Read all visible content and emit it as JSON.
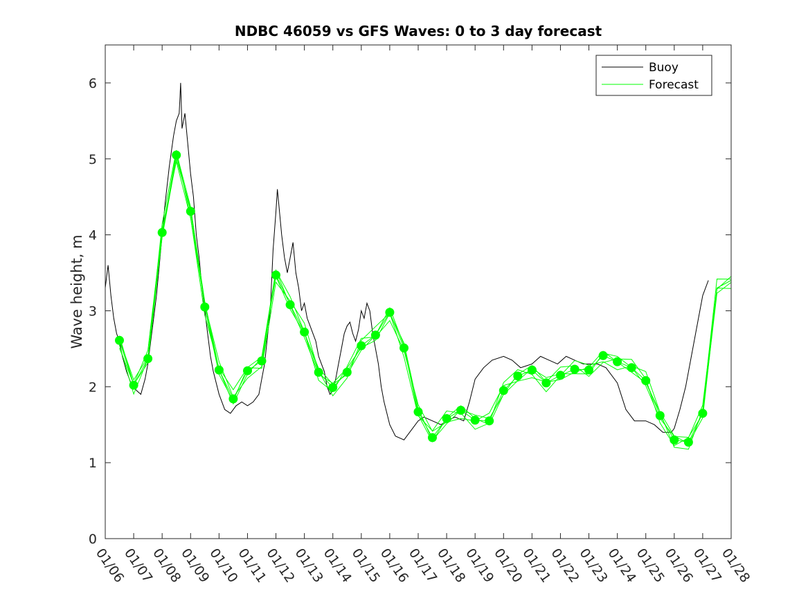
{
  "chart_data": {
    "type": "line",
    "title": "NDBC 46059 vs GFS Waves: 0 to 3 day forecast",
    "xlabel": "",
    "ylabel": "Wave height, m",
    "xlim": [
      0,
      22
    ],
    "ylim": [
      0,
      6.5
    ],
    "x_tick_labels": [
      "01/06",
      "01/07",
      "01/08",
      "01/09",
      "01/10",
      "01/11",
      "01/12",
      "01/13",
      "01/14",
      "01/15",
      "01/16",
      "01/17",
      "01/18",
      "01/19",
      "01/20",
      "01/21",
      "01/22",
      "01/23",
      "01/24",
      "01/25",
      "01/26",
      "01/27",
      "01/28"
    ],
    "y_ticks": [
      0,
      1,
      2,
      3,
      4,
      5,
      6
    ],
    "grid": false,
    "legend_position": "top-right",
    "colors": {
      "buoy": "#000000",
      "forecast": "#00ff00",
      "axes": "#262626"
    },
    "series": [
      {
        "name": "Buoy",
        "x_days": [
          0,
          0.1,
          0.2,
          0.3,
          0.4,
          0.5,
          0.6,
          0.75,
          0.9,
          1.0,
          1.1,
          1.25,
          1.4,
          1.5,
          1.6,
          1.7,
          1.8,
          1.9,
          2.0,
          2.1,
          2.25,
          2.4,
          2.5,
          2.6,
          2.65,
          2.7,
          2.8,
          2.9,
          3.0,
          3.1,
          3.2,
          3.3,
          3.4,
          3.5,
          3.6,
          3.7,
          3.8,
          4.0,
          4.2,
          4.4,
          4.5,
          4.6,
          4.8,
          5.0,
          5.2,
          5.4,
          5.6,
          5.8,
          5.9,
          6.0,
          6.05,
          6.1,
          6.2,
          6.3,
          6.4,
          6.5,
          6.6,
          6.7,
          6.8,
          6.9,
          7.0,
          7.1,
          7.2,
          7.3,
          7.4,
          7.5,
          7.6,
          7.7,
          7.8,
          7.9,
          8.0,
          8.1,
          8.2,
          8.3,
          8.4,
          8.5,
          8.6,
          8.7,
          8.8,
          8.9,
          9.0,
          9.1,
          9.2,
          9.3,
          9.4,
          9.5,
          9.6,
          9.7,
          9.8,
          10.0,
          10.2,
          10.5,
          10.8,
          11.0,
          11.2,
          11.5,
          11.8,
          12.0,
          12.3,
          12.6,
          12.8,
          13.0,
          13.3,
          13.6,
          14.0,
          14.3,
          14.6,
          15.0,
          15.3,
          15.6,
          15.9,
          16.2,
          16.5,
          16.8,
          17.0,
          17.3,
          17.6,
          18.0,
          18.3,
          18.6,
          19.0,
          19.3,
          19.6,
          19.9,
          20.0,
          20.2,
          20.4,
          20.6,
          20.8,
          21.0,
          21.2
        ],
        "values": [
          3.3,
          3.6,
          3.2,
          2.9,
          2.7,
          2.6,
          2.4,
          2.2,
          2.05,
          2.0,
          1.95,
          1.9,
          2.1,
          2.3,
          2.6,
          2.9,
          3.2,
          3.6,
          4.0,
          4.4,
          4.9,
          5.3,
          5.5,
          5.6,
          6.0,
          5.4,
          5.6,
          5.2,
          4.8,
          4.5,
          4.0,
          3.7,
          3.3,
          3.0,
          2.7,
          2.4,
          2.2,
          1.9,
          1.7,
          1.65,
          1.7,
          1.75,
          1.8,
          1.75,
          1.8,
          1.9,
          2.3,
          3.0,
          3.8,
          4.3,
          4.6,
          4.4,
          4.0,
          3.7,
          3.5,
          3.7,
          3.9,
          3.5,
          3.3,
          3.0,
          3.1,
          2.9,
          2.8,
          2.7,
          2.6,
          2.4,
          2.3,
          2.2,
          2.0,
          1.9,
          1.95,
          2.1,
          2.3,
          2.5,
          2.7,
          2.8,
          2.85,
          2.7,
          2.6,
          2.75,
          3.0,
          2.9,
          3.1,
          3.0,
          2.7,
          2.5,
          2.3,
          2.0,
          1.8,
          1.5,
          1.35,
          1.3,
          1.45,
          1.55,
          1.6,
          1.55,
          1.5,
          1.55,
          1.6,
          1.55,
          1.8,
          2.1,
          2.25,
          2.35,
          2.4,
          2.35,
          2.25,
          2.3,
          2.4,
          2.35,
          2.3,
          2.4,
          2.35,
          2.3,
          2.3,
          2.3,
          2.25,
          2.05,
          1.7,
          1.55,
          1.55,
          1.5,
          1.4,
          1.4,
          1.45,
          1.7,
          2.0,
          2.4,
          2.8,
          3.2,
          3.4
        ]
      },
      {
        "name": "Forecast",
        "x_days": [
          0.5,
          1.0,
          1.5,
          2.0,
          2.5,
          3.0,
          3.5,
          4.0,
          4.5,
          5.0,
          5.5,
          6.0,
          6.5,
          7.0,
          7.5,
          8.0,
          8.5,
          9.0,
          9.5,
          10.0,
          10.5,
          11.0,
          11.5,
          12.0,
          12.5,
          13.0,
          13.5,
          14.0,
          14.5,
          15.0,
          15.5,
          16.0,
          16.5,
          17.0,
          17.5,
          18.0,
          18.5,
          19.0,
          19.5,
          20.0,
          20.5,
          21.0,
          21.5,
          22.0
        ],
        "values": [
          2.61,
          2.02,
          2.37,
          4.03,
          5.05,
          4.31,
          3.05,
          2.22,
          1.84,
          2.21,
          2.34,
          3.47,
          3.08,
          2.72,
          2.19,
          1.99,
          2.19,
          2.54,
          2.68,
          2.98,
          2.51,
          1.67,
          1.33,
          1.58,
          1.69,
          1.56,
          1.55,
          1.95,
          2.14,
          2.22,
          2.05,
          2.15,
          2.23,
          2.22,
          2.41,
          2.33,
          2.25,
          2.08,
          1.62,
          1.3,
          1.27,
          1.65,
          3.3,
          3.4
        ]
      }
    ],
    "legend": [
      "Buoy",
      "Forecast"
    ]
  }
}
